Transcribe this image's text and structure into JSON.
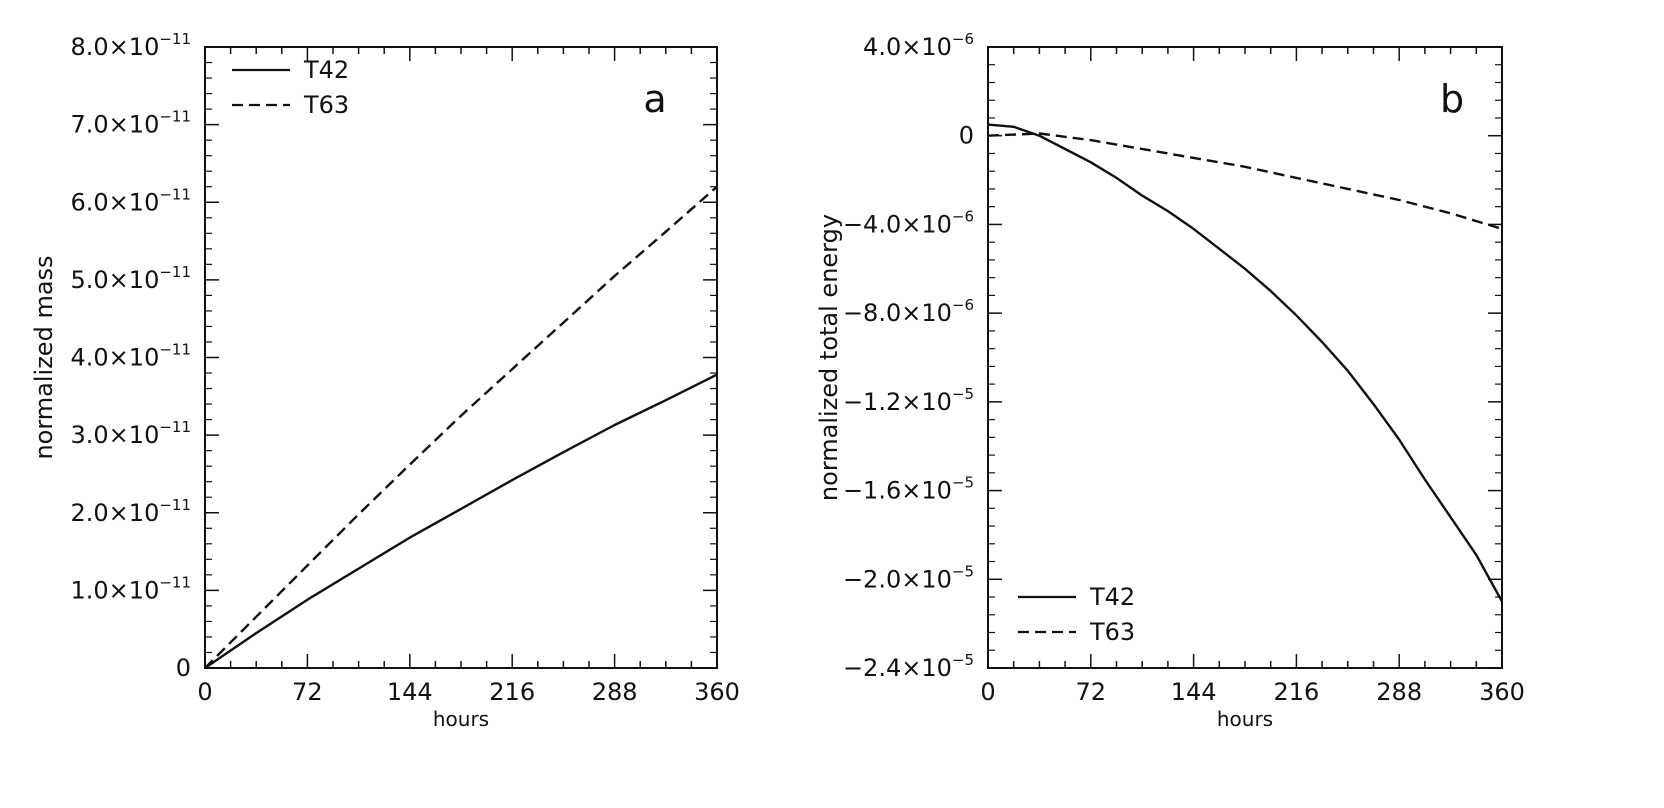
{
  "chart_data": [
    {
      "type": "line",
      "panel": "a",
      "xlabel": "hours",
      "ylabel": "normalized mass",
      "xlim": [
        0,
        360
      ],
      "ylim": [
        0,
        8e-11
      ],
      "x_ticks": [
        0,
        72,
        144,
        216,
        288,
        360
      ],
      "x_tick_labels": [
        "0",
        "72",
        "144",
        "216",
        "288",
        "360"
      ],
      "y_ticks": [
        0,
        1e-11,
        2e-11,
        3e-11,
        4e-11,
        5e-11,
        6e-11,
        7e-11,
        8e-11
      ],
      "y_tick_labels": [
        {
          "mant": "0",
          "exp": ""
        },
        {
          "mant": "1.0×10",
          "exp": "−11"
        },
        {
          "mant": "2.0×10",
          "exp": "−11"
        },
        {
          "mant": "3.0×10",
          "exp": "−11"
        },
        {
          "mant": "4.0×10",
          "exp": "−11"
        },
        {
          "mant": "5.0×10",
          "exp": "−11"
        },
        {
          "mant": "6.0×10",
          "exp": "−11"
        },
        {
          "mant": "7.0×10",
          "exp": "−11"
        },
        {
          "mant": "8.0×10",
          "exp": "−11"
        }
      ],
      "legend_position": "top-left",
      "series": [
        {
          "name": "T42",
          "style": "solid",
          "x": [
            0,
            36,
            72,
            108,
            144,
            180,
            216,
            252,
            288,
            324,
            360
          ],
          "y": [
            0,
            4.5e-12,
            8.8e-12,
            1.28e-11,
            1.68e-11,
            2.05e-11,
            2.42e-11,
            2.78e-11,
            3.13e-11,
            3.45e-11,
            3.78e-11
          ]
        },
        {
          "name": "T63",
          "style": "dashed",
          "x": [
            0,
            36,
            72,
            108,
            144,
            180,
            216,
            252,
            288,
            324,
            360
          ],
          "y": [
            0,
            6.6e-12,
            1.32e-11,
            1.98e-11,
            2.62e-11,
            3.25e-11,
            3.85e-11,
            4.45e-11,
            5.05e-11,
            5.62e-11,
            6.2e-11
          ]
        }
      ]
    },
    {
      "type": "line",
      "panel": "b",
      "xlabel": "hours",
      "ylabel": "normalized total energy",
      "xlim": [
        0,
        360
      ],
      "ylim": [
        -2.4e-05,
        4e-06
      ],
      "x_ticks": [
        0,
        72,
        144,
        216,
        288,
        360
      ],
      "x_tick_labels": [
        "0",
        "72",
        "144",
        "216",
        "288",
        "360"
      ],
      "y_ticks": [
        4e-06,
        0,
        -4e-06,
        -8e-06,
        -1.2e-05,
        -1.6e-05,
        -2e-05,
        -2.4e-05
      ],
      "y_tick_labels": [
        {
          "mant": "4.0×10",
          "exp": "−6"
        },
        {
          "mant": "0",
          "exp": ""
        },
        {
          "mant": "−4.0×10",
          "exp": "−6"
        },
        {
          "mant": "−8.0×10",
          "exp": "−6"
        },
        {
          "mant": "−1.2×10",
          "exp": "−5"
        },
        {
          "mant": "−1.6×10",
          "exp": "−5"
        },
        {
          "mant": "−2.0×10",
          "exp": "−5"
        },
        {
          "mant": "−2.4×10",
          "exp": "−5"
        }
      ],
      "legend_position": "bottom-left",
      "series": [
        {
          "name": "T42",
          "style": "solid",
          "x": [
            0,
            18,
            36,
            54,
            72,
            90,
            108,
            126,
            144,
            162,
            180,
            198,
            216,
            234,
            252,
            270,
            288,
            306,
            324,
            342,
            360
          ],
          "y": [
            5e-07,
            4e-07,
            0,
            -6e-07,
            -1.2e-06,
            -1.9e-06,
            -2.7e-06,
            -3.4e-06,
            -4.2e-06,
            -5.1e-06,
            -6e-06,
            -7e-06,
            -8.1e-06,
            -9.3e-06,
            -1.06e-05,
            -1.21e-05,
            -1.37e-05,
            -1.55e-05,
            -1.72e-05,
            -1.89e-05,
            -2.1e-05
          ]
        },
        {
          "name": "T63",
          "style": "dashed",
          "x": [
            0,
            36,
            72,
            108,
            144,
            180,
            216,
            252,
            288,
            324,
            360
          ],
          "y": [
            0,
            1e-07,
            -2e-07,
            -6e-07,
            -1e-06,
            -1.4e-06,
            -1.9e-06,
            -2.4e-06,
            -2.9e-06,
            -3.5e-06,
            -4.2e-06
          ]
        }
      ]
    }
  ]
}
